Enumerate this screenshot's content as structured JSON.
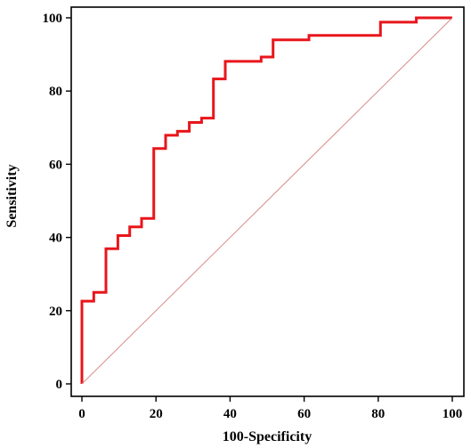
{
  "chart_data": {
    "type": "line",
    "title": "",
    "xlabel": "100-Specificity",
    "ylabel": "Sensitivity",
    "xlim": [
      0,
      100
    ],
    "ylim": [
      0,
      100
    ],
    "xticks": [
      "0",
      "20",
      "40",
      "60",
      "80",
      "100"
    ],
    "yticks": [
      "0",
      "20",
      "40",
      "60",
      "80",
      "100"
    ],
    "grid": false,
    "colors": {
      "roc": "#e8161b",
      "reference": "#d98b8b",
      "axes": "#000000"
    },
    "series": [
      {
        "kind": "roc-step",
        "x": [
          0,
          0,
          3.2,
          3.2,
          6.5,
          6.5,
          9.7,
          9.7,
          12.9,
          12.9,
          16.1,
          16.1,
          19.4,
          19.4,
          22.6,
          22.6,
          25.8,
          25.8,
          29.0,
          29.0,
          32.3,
          32.3,
          35.5,
          35.5,
          38.7,
          38.7,
          48.4,
          48.4,
          51.6,
          51.6,
          61.3,
          61.3,
          80.6,
          80.6,
          90.3,
          90.3,
          100
        ],
        "y": [
          0,
          22.6,
          22.6,
          25.0,
          25.0,
          36.9,
          36.9,
          40.5,
          40.5,
          42.9,
          42.9,
          45.2,
          45.2,
          64.3,
          64.3,
          67.9,
          67.9,
          69.0,
          69.0,
          71.4,
          71.4,
          72.6,
          72.6,
          83.3,
          83.3,
          88.1,
          88.1,
          89.3,
          89.3,
          94.0,
          94.0,
          95.2,
          95.2,
          98.8,
          98.8,
          100,
          100
        ]
      },
      {
        "kind": "reference-diagonal",
        "x": [
          0,
          100
        ],
        "y": [
          0,
          100
        ]
      }
    ]
  }
}
